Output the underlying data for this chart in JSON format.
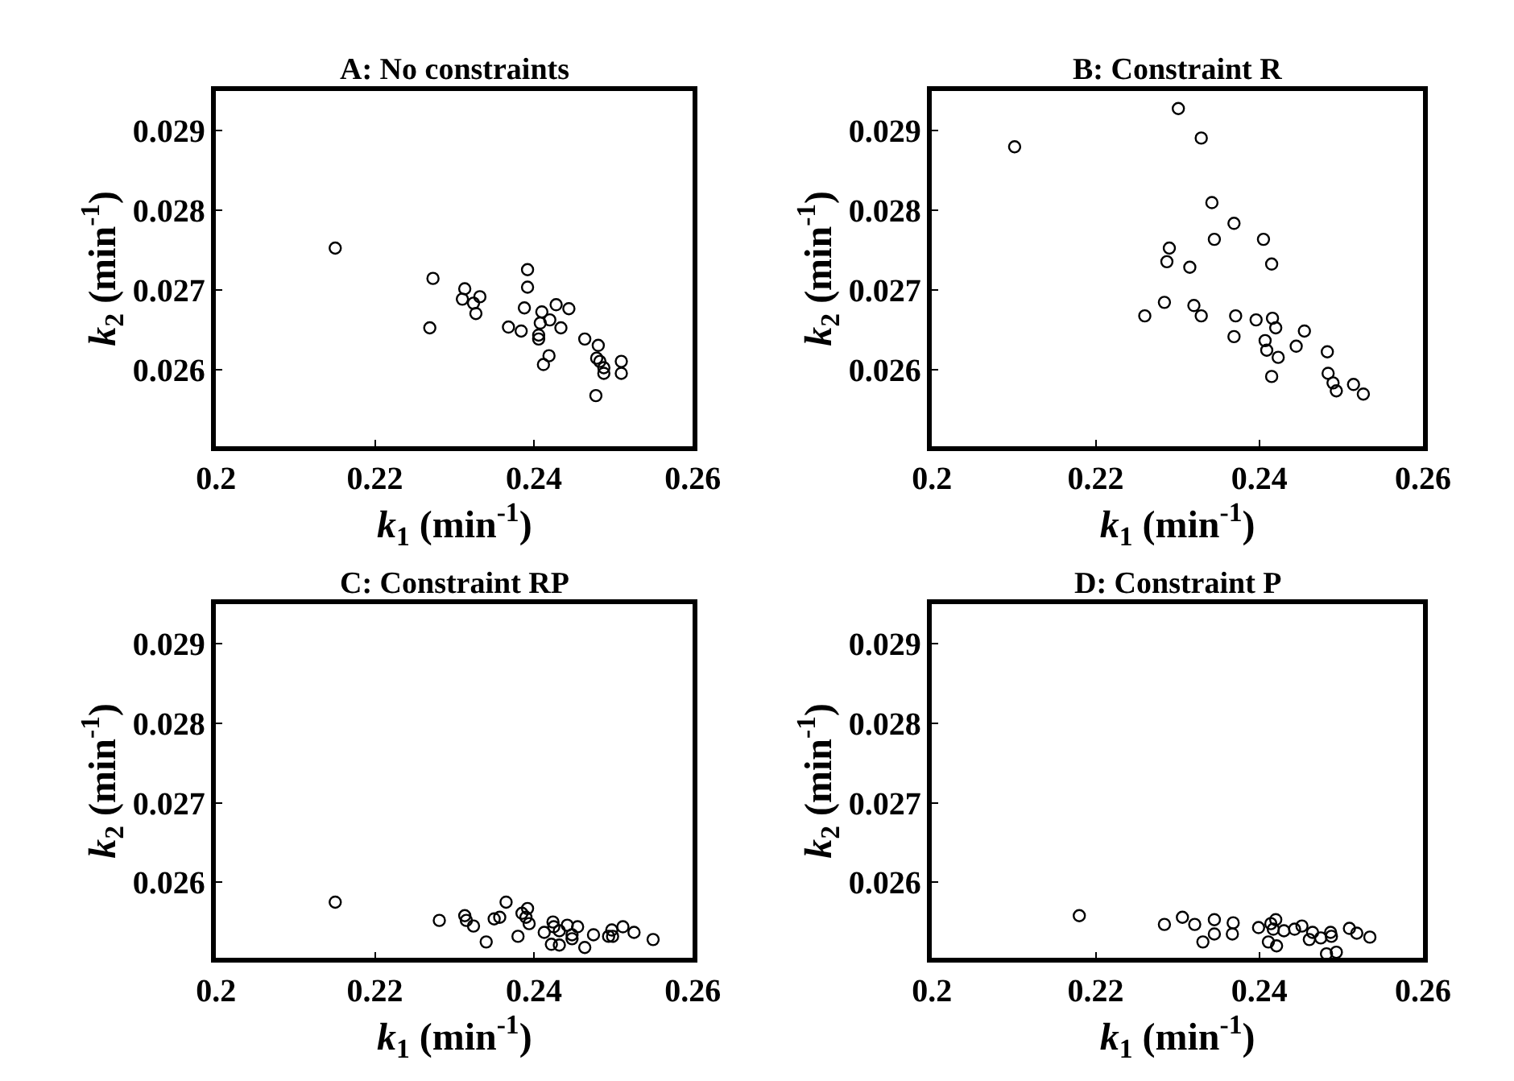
{
  "chart_data": [
    {
      "type": "scatter",
      "title": "A: No constraints",
      "xlabel": "k$_{1}$ (min$^{-1}$)",
      "ylabel": "k$_{2}$ (min$^{-1}$)",
      "marker": "circle",
      "xlim": [
        0.2,
        0.26
      ],
      "xticks": [
        0.2,
        0.22,
        0.24,
        0.26
      ],
      "ylim": [
        0.02505,
        0.0295
      ],
      "yticks": [
        0.026,
        0.027,
        0.028,
        0.029
      ],
      "series": [
        {
          "color": "#000000",
          "x": [
            0.215,
            0.2273,
            0.2269,
            0.2313,
            0.231,
            0.2324,
            0.2332,
            0.2327,
            0.2368,
            0.2384,
            0.2392,
            0.2392,
            0.2388,
            0.241,
            0.2428,
            0.2444,
            0.2408,
            0.242,
            0.2434,
            0.2406,
            0.2406,
            0.2419,
            0.2412,
            0.2464,
            0.2481,
            0.2479,
            0.2483,
            0.2488,
            0.2488,
            0.251,
            0.251,
            0.2478
          ],
          "values": [
            0.02753,
            0.02715,
            0.02653,
            0.02702,
            0.02689,
            0.02684,
            0.02692,
            0.02671,
            0.02654,
            0.02649,
            0.02726,
            0.02704,
            0.02678,
            0.02673,
            0.02682,
            0.02677,
            0.02659,
            0.02663,
            0.02653,
            0.02644,
            0.02639,
            0.02618,
            0.02607,
            0.02639,
            0.02631,
            0.02615,
            0.02611,
            0.02603,
            0.02596,
            0.02611,
            0.02596,
            0.02568
          ]
        }
      ]
    },
    {
      "type": "scatter",
      "title": "B: Constraint R",
      "xlabel": "k$_{1}$ (min$^{-1}$)",
      "ylabel": "k$_{2}$ (min$^{-1}$)",
      "marker": "circle",
      "xlim": [
        0.2,
        0.26
      ],
      "xticks": [
        0.2,
        0.22,
        0.24,
        0.26
      ],
      "ylim": [
        0.02505,
        0.0295
      ],
      "yticks": [
        0.026,
        0.027,
        0.028,
        0.029
      ],
      "series": [
        {
          "color": "#000000",
          "x": [
            0.2101,
            0.2301,
            0.2329,
            0.2342,
            0.2369,
            0.2345,
            0.2405,
            0.229,
            0.2287,
            0.2315,
            0.2415,
            0.2284,
            0.232,
            0.2329,
            0.226,
            0.2371,
            0.2369,
            0.2396,
            0.2416,
            0.242,
            0.2455,
            0.2407,
            0.2409,
            0.2423,
            0.2445,
            0.2415,
            0.2483,
            0.2484,
            0.249,
            0.2494,
            0.2515,
            0.2527
          ],
          "values": [
            0.0288,
            0.02928,
            0.02891,
            0.0281,
            0.02784,
            0.02764,
            0.02764,
            0.02753,
            0.02736,
            0.02729,
            0.02733,
            0.02685,
            0.02681,
            0.02668,
            0.02668,
            0.02668,
            0.02642,
            0.02663,
            0.02665,
            0.02653,
            0.02649,
            0.02637,
            0.02625,
            0.02616,
            0.0263,
            0.02592,
            0.02623,
            0.02596,
            0.02584,
            0.02574,
            0.02582,
            0.0257
          ]
        }
      ]
    },
    {
      "type": "scatter",
      "title": "C: Constraint RP",
      "xlabel": "k$_{1}$ (min$^{-1}$)",
      "ylabel": "k$_{2}$ (min$^{-1}$)",
      "marker": "circle",
      "xlim": [
        0.2,
        0.26
      ],
      "xticks": [
        0.2,
        0.22,
        0.24,
        0.26
      ],
      "ylim": [
        0.02505,
        0.0295
      ],
      "yticks": [
        0.026,
        0.027,
        0.028,
        0.029
      ],
      "series": [
        {
          "color": "#000000",
          "x": [
            0.215,
            0.2281,
            0.2313,
            0.2315,
            0.2324,
            0.234,
            0.235,
            0.2357,
            0.2365,
            0.238,
            0.2385,
            0.239,
            0.2392,
            0.2394,
            0.2413,
            0.2424,
            0.2425,
            0.2422,
            0.2432,
            0.2432,
            0.2442,
            0.2448,
            0.2448,
            0.2455,
            0.2464,
            0.2475,
            0.2494,
            0.2498,
            0.2499,
            0.2512,
            0.2526,
            0.255
          ],
          "values": [
            0.02575,
            0.02552,
            0.02558,
            0.02552,
            0.02545,
            0.02525,
            0.02554,
            0.02556,
            0.02575,
            0.02532,
            0.02561,
            0.02556,
            0.02567,
            0.02548,
            0.02537,
            0.0255,
            0.02544,
            0.02522,
            0.02521,
            0.02539,
            0.02546,
            0.02534,
            0.02529,
            0.02544,
            0.02518,
            0.02534,
            0.02532,
            0.0254,
            0.02532,
            0.02544,
            0.02537,
            0.02528
          ]
        }
      ]
    },
    {
      "type": "scatter",
      "title": "D: Constraint P",
      "xlabel": "k$_{1}$ (min$^{-1}$)",
      "ylabel": "k$_{2}$ (min$^{-1}$)",
      "marker": "circle",
      "xlim": [
        0.2,
        0.26
      ],
      "xticks": [
        0.2,
        0.22,
        0.24,
        0.26
      ],
      "ylim": [
        0.02505,
        0.0295
      ],
      "yticks": [
        0.026,
        0.027,
        0.028,
        0.029
      ],
      "series": [
        {
          "color": "#000000",
          "x": [
            0.218,
            0.2284,
            0.2306,
            0.2321,
            0.2331,
            0.2345,
            0.2345,
            0.2368,
            0.2367,
            0.2399,
            0.2414,
            0.242,
            0.2417,
            0.2411,
            0.2421,
            0.243,
            0.2443,
            0.2452,
            0.2465,
            0.2461,
            0.2475,
            0.2487,
            0.2488,
            0.2482,
            0.2494,
            0.251,
            0.2519,
            0.2535
          ],
          "values": [
            0.02558,
            0.02547,
            0.02556,
            0.02547,
            0.02525,
            0.02553,
            0.02535,
            0.02549,
            0.02535,
            0.02543,
            0.02548,
            0.02553,
            0.02541,
            0.02525,
            0.0252,
            0.02539,
            0.02541,
            0.02545,
            0.02537,
            0.02528,
            0.0253,
            0.02537,
            0.02532,
            0.0251,
            0.02512,
            0.02542,
            0.02536,
            0.02531
          ]
        }
      ]
    }
  ]
}
